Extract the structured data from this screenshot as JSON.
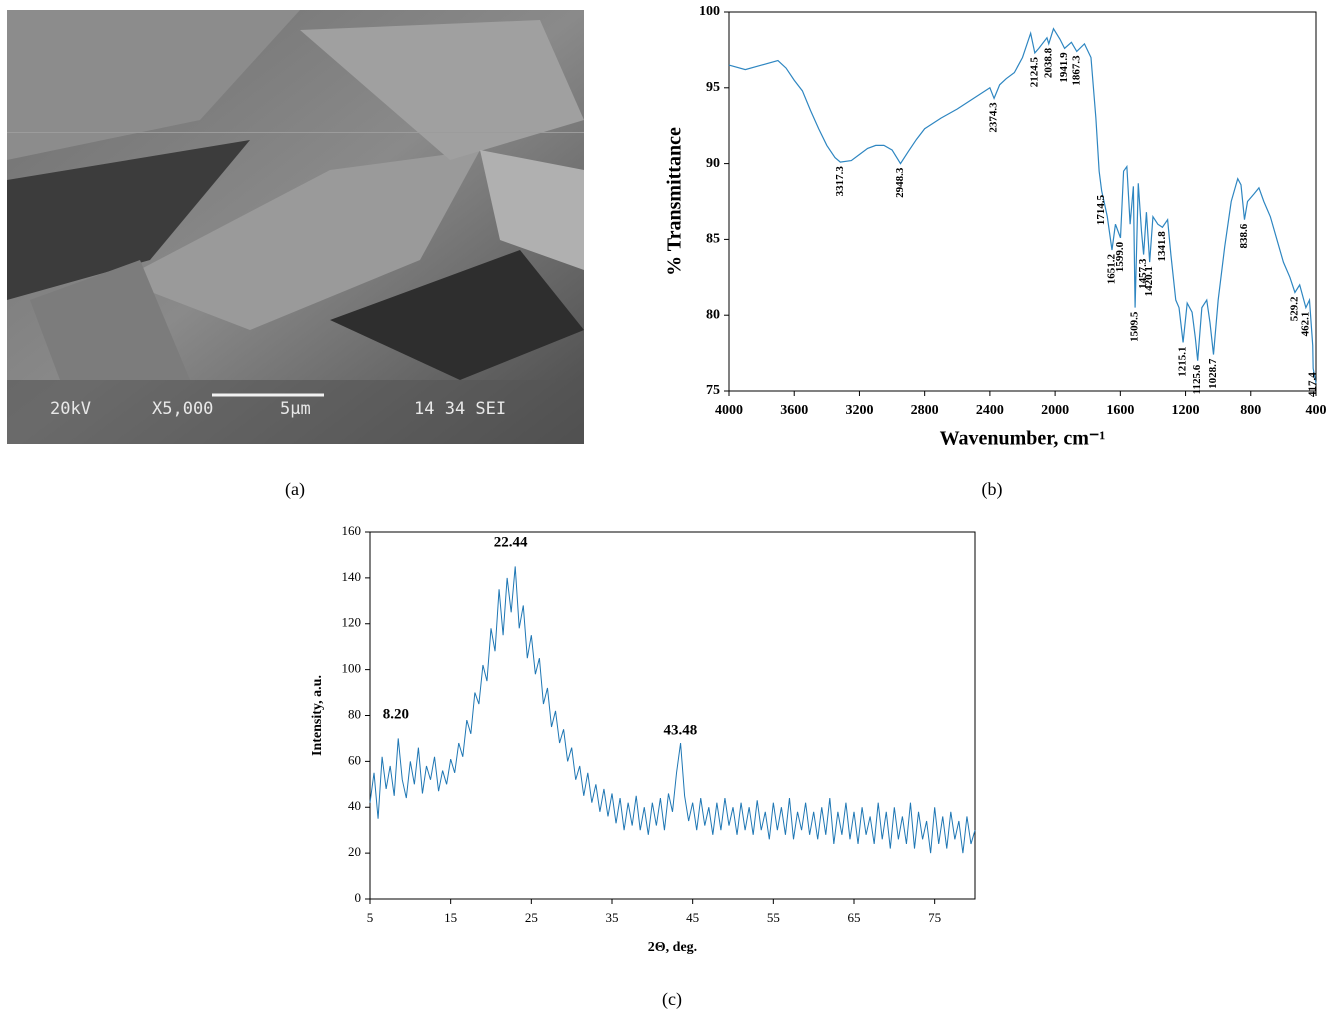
{
  "image": {
    "labels": [
      "20kV",
      "X5,000",
      "5µm",
      "14 34 SEI"
    ],
    "caption": "(a)"
  },
  "chart_data": [
    {
      "type": "line",
      "caption": "(b)",
      "xlabel": "Wavenumber, cm⁻¹",
      "ylabel": "% Transmittance",
      "color": "#2e86c1",
      "xlim": [
        4000,
        400
      ],
      "xticks": [
        4000,
        3600,
        3200,
        2800,
        2400,
        2000,
        1600,
        1200,
        800,
        400
      ],
      "ylim": [
        75,
        100
      ],
      "yticks": [
        75,
        80,
        85,
        90,
        95,
        100
      ],
      "x": [
        4000,
        3900,
        3800,
        3700,
        3650,
        3600,
        3550,
        3500,
        3450,
        3400,
        3350,
        3317.3,
        3250,
        3200,
        3150,
        3100,
        3050,
        3000,
        2948.3,
        2900,
        2850,
        2800,
        2700,
        2600,
        2500,
        2400,
        2374.3,
        2340,
        2300,
        2250,
        2200,
        2150,
        2124.5,
        2100,
        2050,
        2038.8,
        2010,
        1970,
        1941.9,
        1900,
        1867.3,
        1820,
        1780,
        1750,
        1730,
        1714.5,
        1700,
        1680,
        1651.2,
        1630,
        1599.0,
        1580,
        1560,
        1540,
        1520,
        1509.5,
        1490,
        1470,
        1457.3,
        1440,
        1420.1,
        1400,
        1370,
        1341.8,
        1310,
        1290,
        1260,
        1240,
        1215.1,
        1190,
        1160,
        1140,
        1125.6,
        1100,
        1070,
        1050,
        1028.7,
        1000,
        960,
        920,
        880,
        860,
        838.6,
        820,
        780,
        750,
        720,
        680,
        640,
        600,
        560,
        529.2,
        500,
        462.1,
        440,
        420,
        417.4,
        400
      ],
      "values": [
        96.5,
        96.2,
        96.5,
        96.8,
        96.3,
        95.5,
        94.8,
        93.5,
        92.3,
        91.2,
        90.4,
        90.1,
        90.2,
        90.6,
        91.0,
        91.2,
        91.2,
        90.9,
        90.0,
        90.8,
        91.6,
        92.3,
        93.0,
        93.6,
        94.3,
        95.0,
        94.3,
        95.2,
        95.6,
        96.0,
        97.0,
        98.6,
        97.3,
        97.6,
        98.3,
        97.9,
        98.9,
        98.2,
        97.6,
        98.0,
        97.4,
        97.9,
        97.0,
        93.0,
        89.5,
        88.2,
        87.5,
        86.5,
        84.3,
        86.0,
        85.1,
        89.5,
        89.8,
        86.0,
        88.5,
        80.5,
        88.7,
        85.5,
        84.0,
        86.8,
        83.5,
        86.5,
        86.0,
        85.8,
        86.3,
        84.0,
        81.0,
        80.5,
        78.2,
        80.8,
        80.2,
        78.5,
        77.0,
        80.5,
        81.0,
        79.5,
        77.4,
        81.0,
        84.5,
        87.5,
        89.0,
        88.6,
        86.3,
        87.5,
        88.0,
        88.4,
        87.5,
        86.5,
        85.0,
        83.5,
        82.5,
        81.5,
        82.0,
        80.5,
        81.0,
        78.0,
        76.5,
        75.5
      ],
      "annotations": [
        {
          "x": 3317.3,
          "y": 90.1,
          "label": "3317.3"
        },
        {
          "x": 2948.3,
          "y": 90.0,
          "label": "2948.3"
        },
        {
          "x": 2374.3,
          "y": 94.3,
          "label": "2374.3"
        },
        {
          "x": 2124.5,
          "y": 97.3,
          "label": "2124.5"
        },
        {
          "x": 2038.8,
          "y": 97.9,
          "label": "2038.8"
        },
        {
          "x": 1941.9,
          "y": 97.6,
          "label": "1941.9"
        },
        {
          "x": 1867.3,
          "y": 97.4,
          "label": "1867.3"
        },
        {
          "x": 1714.5,
          "y": 88.2,
          "label": "1714.5"
        },
        {
          "x": 1651.2,
          "y": 84.3,
          "label": "1651.2"
        },
        {
          "x": 1599.0,
          "y": 85.1,
          "label": "1599.0"
        },
        {
          "x": 1509.5,
          "y": 80.5,
          "label": "1509.5"
        },
        {
          "x": 1457.3,
          "y": 84.0,
          "label": "1457.3"
        },
        {
          "x": 1420.1,
          "y": 83.5,
          "label": "1420.1"
        },
        {
          "x": 1341.8,
          "y": 85.8,
          "label": "1341.8"
        },
        {
          "x": 1215.1,
          "y": 78.2,
          "label": "1215.1"
        },
        {
          "x": 1125.6,
          "y": 77.0,
          "label": "1125.6"
        },
        {
          "x": 1028.7,
          "y": 77.4,
          "label": "1028.7"
        },
        {
          "x": 838.6,
          "y": 86.3,
          "label": "838.6"
        },
        {
          "x": 529.2,
          "y": 81.5,
          "label": "529.2"
        },
        {
          "x": 462.1,
          "y": 80.5,
          "label": "462.1"
        },
        {
          "x": 417.4,
          "y": 76.5,
          "label": "417.4"
        }
      ]
    },
    {
      "type": "line",
      "caption": "(c)",
      "xlabel": "2Θ, deg.",
      "ylabel": "Intensity, a.u.",
      "color": "#1f77b4",
      "xlim": [
        5,
        80
      ],
      "xticks": [
        5,
        15,
        25,
        35,
        45,
        55,
        65,
        75
      ],
      "ylim": [
        0,
        160
      ],
      "yticks": [
        0,
        20,
        40,
        60,
        80,
        100,
        120,
        140,
        160
      ],
      "x": [
        5,
        5.5,
        6,
        6.5,
        7,
        7.5,
        8,
        8.5,
        9,
        9.5,
        10,
        10.5,
        11,
        11.5,
        12,
        12.5,
        13,
        13.5,
        14,
        14.5,
        15,
        15.5,
        16,
        16.5,
        17,
        17.5,
        18,
        18.5,
        19,
        19.5,
        20,
        20.5,
        21,
        21.5,
        22,
        22.5,
        23,
        23.5,
        24,
        24.5,
        25,
        25.5,
        26,
        26.5,
        27,
        27.5,
        28,
        28.5,
        29,
        29.5,
        30,
        30.5,
        31,
        31.5,
        32,
        32.5,
        33,
        33.5,
        34,
        34.5,
        35,
        35.5,
        36,
        36.5,
        37,
        37.5,
        38,
        38.5,
        39,
        39.5,
        40,
        40.5,
        41,
        41.5,
        42,
        42.5,
        43,
        43.5,
        44,
        44.5,
        45,
        45.5,
        46,
        46.5,
        47,
        47.5,
        48,
        48.5,
        49,
        49.5,
        50,
        50.5,
        51,
        51.5,
        52,
        52.5,
        53,
        53.5,
        54,
        54.5,
        55,
        55.5,
        56,
        56.5,
        57,
        57.5,
        58,
        58.5,
        59,
        59.5,
        60,
        60.5,
        61,
        61.5,
        62,
        62.5,
        63,
        63.5,
        64,
        64.5,
        65,
        65.5,
        66,
        66.5,
        67,
        67.5,
        68,
        68.5,
        69,
        69.5,
        70,
        70.5,
        71,
        71.5,
        72,
        72.5,
        73,
        73.5,
        74,
        74.5,
        75,
        75.5,
        76,
        76.5,
        77,
        77.5,
        78,
        78.5,
        79,
        79.5,
        80
      ],
      "values": [
        42,
        55,
        35,
        62,
        48,
        58,
        45,
        70,
        52,
        44,
        60,
        50,
        66,
        46,
        58,
        52,
        62,
        47,
        56,
        50,
        61,
        55,
        68,
        62,
        78,
        72,
        90,
        85,
        102,
        95,
        118,
        108,
        135,
        115,
        140,
        125,
        145,
        118,
        128,
        105,
        115,
        98,
        105,
        85,
        92,
        75,
        82,
        68,
        74,
        60,
        66,
        52,
        58,
        45,
        55,
        42,
        50,
        38,
        48,
        36,
        46,
        33,
        44,
        30,
        42,
        32,
        45,
        30,
        40,
        28,
        42,
        32,
        44,
        30,
        46,
        38,
        55,
        68,
        45,
        34,
        42,
        30,
        44,
        32,
        40,
        28,
        42,
        30,
        44,
        32,
        40,
        28,
        42,
        30,
        40,
        28,
        43,
        30,
        38,
        26,
        42,
        30,
        40,
        28,
        44,
        26,
        38,
        30,
        42,
        28,
        38,
        26,
        40,
        28,
        44,
        24,
        38,
        28,
        42,
        26,
        38,
        24,
        40,
        28,
        36,
        24,
        42,
        26,
        38,
        22,
        40,
        26,
        36,
        24,
        42,
        22,
        38,
        26,
        34,
        20,
        40,
        24,
        36,
        22,
        38,
        26,
        34,
        20,
        36,
        24,
        30
      ],
      "annotations": [
        {
          "x": 8.2,
          "y": 75,
          "label": "8.20"
        },
        {
          "x": 22.44,
          "y": 150,
          "label": "22.44"
        },
        {
          "x": 43.48,
          "y": 68,
          "label": "43.48"
        }
      ]
    }
  ]
}
